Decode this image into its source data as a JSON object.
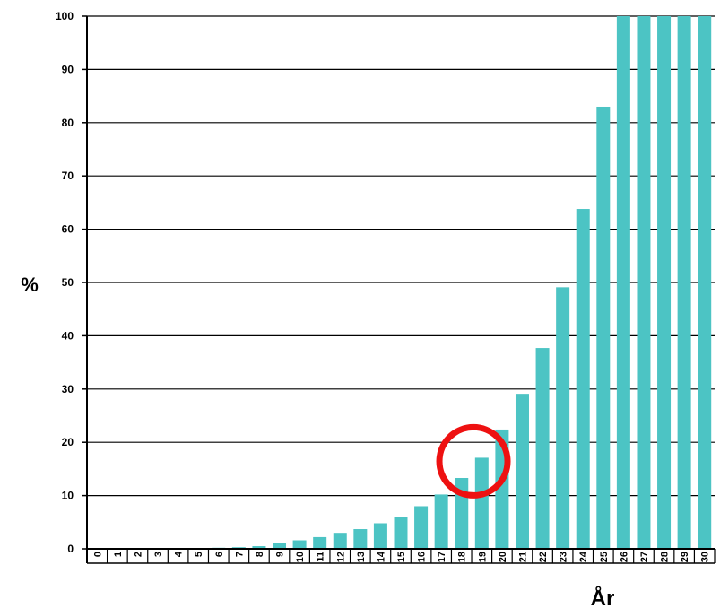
{
  "chart_data": {
    "type": "bar",
    "title": "",
    "xlabel": "År",
    "ylabel": "%",
    "ylim": [
      0,
      100
    ],
    "yticks": [
      0,
      10,
      20,
      30,
      40,
      50,
      60,
      70,
      80,
      90,
      100
    ],
    "ytick_labels": [
      "0",
      "10",
      "20",
      "30",
      "40",
      "50",
      "60",
      "70",
      "80",
      "90",
      "100"
    ],
    "grid": true,
    "legend": "none",
    "categories": [
      "0",
      "1",
      "2",
      "3",
      "4",
      "5",
      "6",
      "7",
      "8",
      "9",
      "10",
      "11",
      "12",
      "13",
      "14",
      "15",
      "16",
      "17",
      "18",
      "19",
      "20",
      "21",
      "22",
      "23",
      "24",
      "25",
      "26",
      "27",
      "28",
      "29",
      "30"
    ],
    "values": [
      0,
      0,
      0,
      0,
      0,
      0,
      0.2,
      0.3,
      0.5,
      1.1,
      1.6,
      2.2,
      3.0,
      3.7,
      4.8,
      6.0,
      8.0,
      10.2,
      13.3,
      17.1,
      22.4,
      29.1,
      37.7,
      49.1,
      63.8,
      83.0,
      100,
      100,
      100,
      100,
      100
    ],
    "bar_color": "#4cc4c4",
    "highlight": {
      "category": "19",
      "color": "#ee1111",
      "shape": "circle"
    }
  }
}
